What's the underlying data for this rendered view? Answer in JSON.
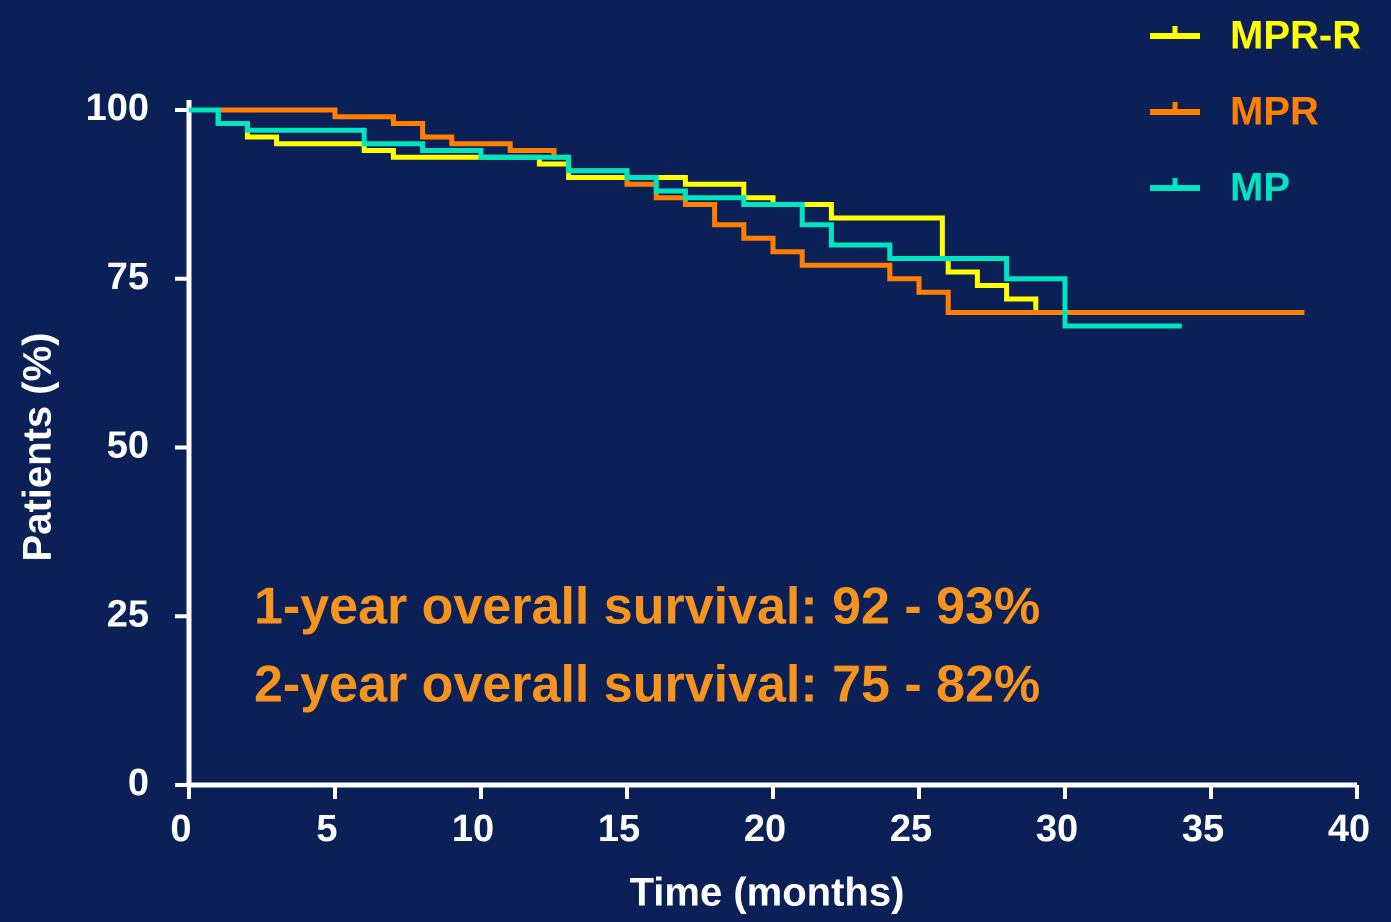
{
  "chart_data": {
    "type": "line",
    "step": "post",
    "x_label": "Time (months)",
    "y_label": "Patients (%)",
    "xlim": [
      0,
      40
    ],
    "xticks": [
      0,
      5,
      10,
      15,
      20,
      25,
      30,
      35,
      40
    ],
    "ylim": [
      0,
      100
    ],
    "yticks": [
      0,
      25,
      50,
      75,
      100
    ],
    "legend": "top-right",
    "annotations": [
      "1-year overall survival: 92 - 93%",
      "2-year overall survival: 75 - 82%"
    ],
    "annotation_color": "#f7941d",
    "series": [
      {
        "name": "MPR-R",
        "color": "#ffff00",
        "x": [
          0,
          1,
          2,
          3,
          6,
          7,
          12,
          13,
          17,
          19,
          20,
          22,
          25.8,
          26,
          27,
          28,
          29,
          34
        ],
        "values": [
          100,
          98,
          96,
          95,
          94,
          93,
          92,
          90,
          89,
          87,
          86,
          84,
          78,
          76,
          74,
          72,
          70,
          70
        ]
      },
      {
        "name": "MPR",
        "color": "#ff8000",
        "x": [
          0,
          5,
          7,
          8,
          9,
          11,
          12.5,
          13,
          15,
          16,
          17,
          18,
          19,
          20,
          21,
          24,
          25,
          26,
          38.2
        ],
        "values": [
          100,
          99,
          98,
          96,
          95,
          94,
          93,
          91,
          89,
          87,
          86,
          83,
          81,
          79,
          77,
          75,
          73,
          70,
          70
        ]
      },
      {
        "name": "MP",
        "color": "#00e5c0",
        "x": [
          0,
          1,
          2,
          6,
          8,
          10,
          13,
          15,
          16,
          17,
          19,
          21,
          22,
          24,
          28,
          30,
          34
        ],
        "values": [
          100,
          98,
          97,
          95,
          94,
          93,
          91,
          90,
          88,
          87,
          86,
          83,
          80,
          78,
          75,
          68,
          68
        ]
      }
    ]
  }
}
